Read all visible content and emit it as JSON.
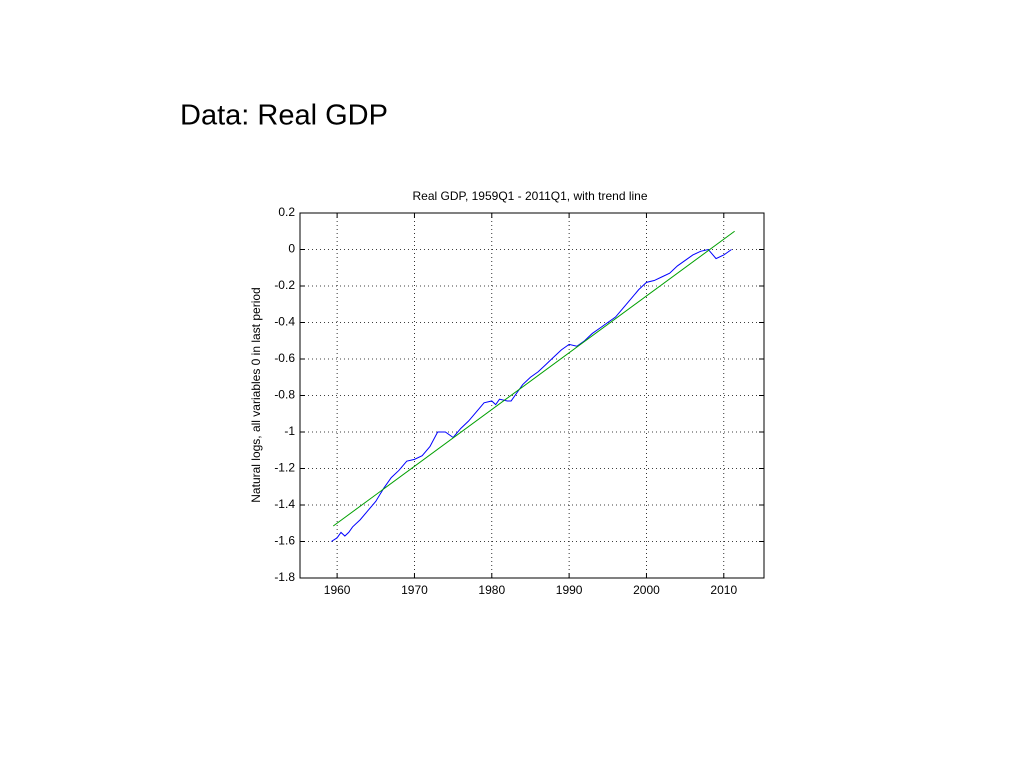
{
  "slide_title": "Data: Real GDP",
  "chart_data": {
    "type": "line",
    "title": "Real GDP, 1959Q1 - 2011Q1, with trend line",
    "ylabel": "Natural logs, all variables 0 in last period",
    "xlim": [
      1955.2,
      2015.2
    ],
    "xticks": [
      1960,
      1970,
      1980,
      1990,
      2000,
      2010
    ],
    "ylim": [
      -1.8,
      0.2
    ],
    "yticks": [
      0.2,
      0,
      -0.2,
      -0.4,
      -0.6,
      -0.8,
      -1,
      -1.2,
      -1.4,
      -1.6,
      -1.8
    ],
    "grid": true,
    "series": [
      {
        "color": "#0000ff",
        "x": [
          1959.25,
          1960.0,
          1960.5,
          1961.0,
          1961.5,
          1962.0,
          1963.0,
          1964.0,
          1965.0,
          1966.0,
          1967.0,
          1968.0,
          1969.0,
          1970.0,
          1971.0,
          1972.0,
          1973.0,
          1974.0,
          1975.0,
          1976.0,
          1977.0,
          1978.0,
          1979.0,
          1980.0,
          1980.5,
          1981.0,
          1982.0,
          1982.5,
          1983.0,
          1984.0,
          1985.0,
          1986.0,
          1987.0,
          1988.0,
          1989.0,
          1990.0,
          1991.0,
          1992.0,
          1993.0,
          1994.0,
          1995.0,
          1996.0,
          1997.0,
          1998.0,
          1999.0,
          2000.0,
          2001.0,
          2002.0,
          2003.0,
          2004.0,
          2005.0,
          2006.0,
          2007.0,
          2008.0,
          2009.0,
          2010.0,
          2011.0
        ],
        "values": [
          -1.6,
          -1.58,
          -1.55,
          -1.57,
          -1.55,
          -1.52,
          -1.48,
          -1.43,
          -1.38,
          -1.31,
          -1.25,
          -1.21,
          -1.16,
          -1.15,
          -1.13,
          -1.08,
          -1.0,
          -1.0,
          -1.03,
          -0.98,
          -0.94,
          -0.89,
          -0.84,
          -0.83,
          -0.85,
          -0.82,
          -0.83,
          -0.83,
          -0.8,
          -0.74,
          -0.7,
          -0.67,
          -0.63,
          -0.59,
          -0.55,
          -0.52,
          -0.53,
          -0.5,
          -0.46,
          -0.43,
          -0.4,
          -0.37,
          -0.32,
          -0.27,
          -0.22,
          -0.18,
          -0.17,
          -0.15,
          -0.13,
          -0.09,
          -0.06,
          -0.03,
          -0.01,
          0.0,
          -0.05,
          -0.03,
          0.0
        ]
      },
      {
        "color": "#00a000",
        "x": [
          1959.5,
          2011.4
        ],
        "values": [
          -1.515,
          0.1
        ]
      }
    ]
  }
}
